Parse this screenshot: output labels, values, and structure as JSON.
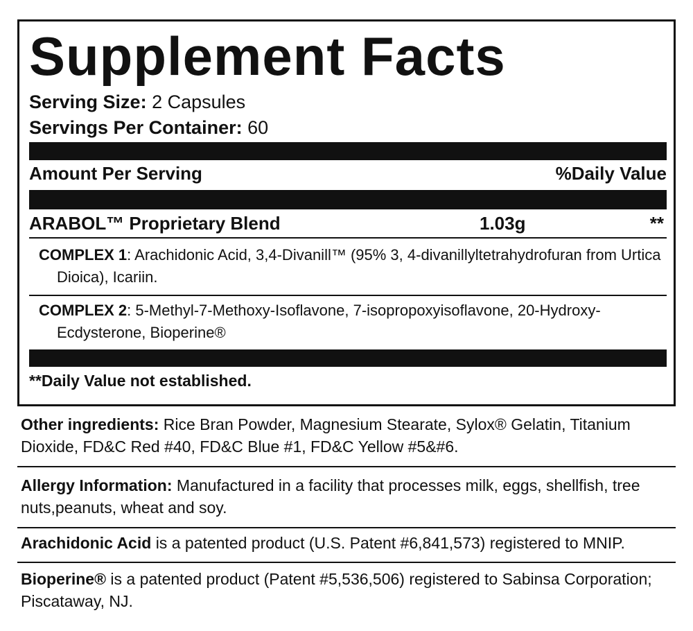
{
  "title": "Supplement Facts",
  "serving_size": {
    "label": "Serving Size:",
    "value": "2 Capsules"
  },
  "servings_per_container": {
    "label": "Servings Per Container:",
    "value": "60"
  },
  "header": {
    "amount": "Amount Per Serving",
    "daily_value": "%Daily Value"
  },
  "blend": {
    "name": "ARABOL™ Proprietary Blend",
    "amount": "1.03g",
    "daily_value": "**"
  },
  "complexes": [
    {
      "label": "COMPLEX 1",
      "text": ": Arachidonic Acid, 3,4-Divanill™ (95% 3, 4-divanillyltetrahydrofuran from Urtica Dioica), Icariin."
    },
    {
      "label": "COMPLEX 2",
      "text": ": 5-Methyl-7-Methoxy-Isoflavone, 7-isopropoxyisoflavone, 20-Hydroxy-Ecdysterone, Bioperine®"
    }
  ],
  "footnote": "**Daily Value not established.",
  "notes": [
    {
      "label": "Other ingredients:",
      "text": "Rice Bran Powder, Magnesium Stearate, Sylox® Gelatin, Titanium Dioxide, FD&C Red #40, FD&C Blue #1, FD&C Yellow #5&#6."
    },
    {
      "label": "Allergy Information:",
      "text": "Manufactured in a facility that processes milk, eggs, shellfish, tree nuts,peanuts, wheat and soy."
    },
    {
      "label": "Arachidonic Acid",
      "text": "is a patented product (U.S. Patent #6,841,573) registered to MNIP."
    },
    {
      "label": "Bioperine®",
      "text": "is a patented product (Patent #5,536,506) registered to Sabinsa Corporation; Piscataway, NJ."
    }
  ]
}
